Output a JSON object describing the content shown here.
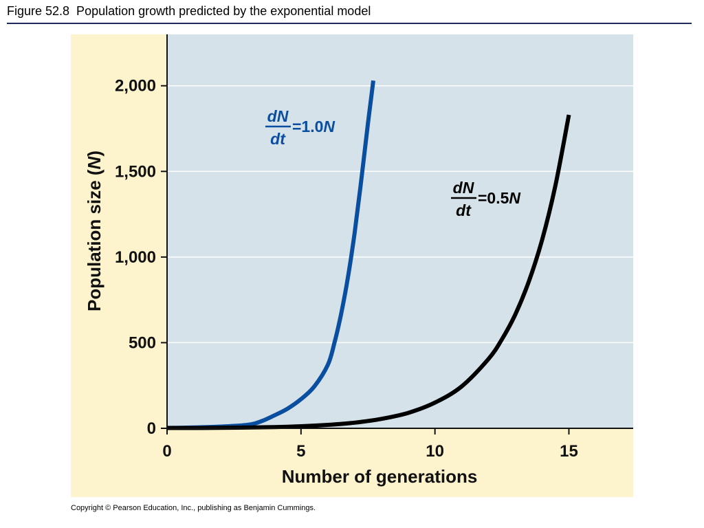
{
  "figure": {
    "title": "Figure 52.8  Population growth predicted by the exponential model",
    "copyright": "Copyright © Pearson Education, Inc., publishing as Benjamin Cummings."
  },
  "colors": {
    "panel_background": "#fdf3cd",
    "plot_background": "#d6e2ea",
    "series_fast": "#0a4ea0",
    "series_slow": "#000000",
    "title_rule": "#1e2a5a"
  },
  "chart_data": {
    "type": "line",
    "title": "",
    "xlabel": "Number of generations",
    "ylabel": "Population size (N)",
    "xlim": [
      0,
      17.4
    ],
    "ylim": [
      0,
      2300
    ],
    "x_ticks": [
      0,
      5,
      10,
      15
    ],
    "x_tick_labels": [
      "0",
      "5",
      "10",
      "15"
    ],
    "y_ticks": [
      0,
      500,
      1000,
      1500,
      2000
    ],
    "y_tick_labels": [
      "0",
      "500",
      "1,000",
      "1,500",
      "2,000"
    ],
    "grid": true,
    "legend": "none",
    "series": [
      {
        "label_numerator": "dN",
        "label_denominator": "dt",
        "label_rhs": "=1.0",
        "label_var": "N",
        "color": "#0a4ea0",
        "x": [
          0,
          1,
          2,
          3,
          3.5,
          4,
          4.5,
          5,
          5.5,
          6,
          6.25,
          6.5,
          6.75,
          7,
          7.25,
          7.5,
          7.7
        ],
        "y": [
          2,
          5,
          10,
          20,
          40,
          75,
          115,
          170,
          245,
          370,
          500,
          670,
          880,
          1140,
          1450,
          1780,
          2030
        ]
      },
      {
        "label_numerator": "dN",
        "label_denominator": "dt",
        "label_rhs": "=0.5",
        "label_var": "N",
        "color": "#000000",
        "x": [
          0,
          2,
          4,
          5,
          6,
          7,
          8,
          9,
          10,
          11,
          12,
          12.5,
          13,
          13.5,
          14,
          14.5,
          15
        ],
        "y": [
          2,
          3,
          7,
          12,
          20,
          33,
          55,
          90,
          150,
          245,
          405,
          520,
          665,
          855,
          1100,
          1420,
          1830
        ]
      }
    ]
  }
}
